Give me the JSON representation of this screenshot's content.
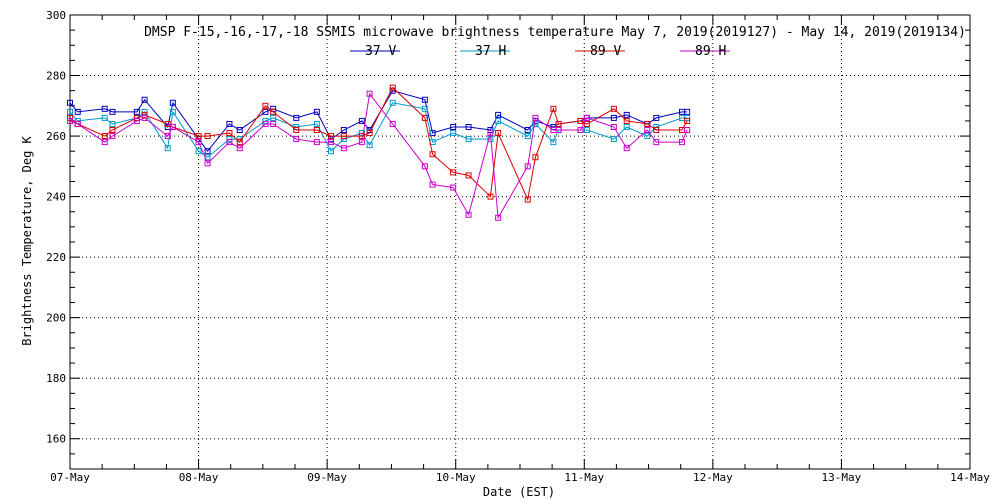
{
  "chart_data": {
    "type": "line",
    "title": "DMSP F-15,-16,-17,-18 SSMIS microwave brightness temperature May  7, 2019(2019127) - May 14, 2019(2019134)",
    "xlabel": "Date (EST)",
    "ylabel": "Brightness Temperature, Deg K",
    "ylim": [
      150,
      300
    ],
    "yticks": [
      160,
      180,
      200,
      220,
      240,
      260,
      280,
      300
    ],
    "xlim_days": [
      0,
      7
    ],
    "x_tick_labels": [
      "07-May",
      "08-May",
      "09-May",
      "10-May",
      "11-May",
      "12-May",
      "13-May",
      "14-May"
    ],
    "grid": true,
    "legend": "top-center",
    "series": [
      {
        "name": "37 V",
        "color": "#0000c0",
        "x": [
          0.0,
          0.06,
          0.27,
          0.33,
          0.52,
          0.58,
          0.76,
          0.8,
          1.0,
          1.07,
          1.24,
          1.32,
          1.52,
          1.58,
          1.76,
          1.92,
          2.03,
          2.13,
          2.27,
          2.33,
          2.51,
          2.76,
          2.82,
          2.98,
          3.1,
          3.27,
          3.33,
          3.56,
          3.62,
          3.76,
          3.8,
          3.97,
          4.02,
          4.23,
          4.33,
          4.49,
          4.56,
          4.76,
          4.8
        ],
        "y": [
          271,
          268,
          269,
          268,
          268,
          272,
          263,
          271,
          259,
          255,
          264,
          262,
          268,
          269,
          266,
          268,
          259,
          262,
          265,
          262,
          275,
          272,
          261,
          263,
          263,
          262,
          267,
          262,
          265,
          263,
          264,
          265,
          266,
          266,
          267,
          264,
          266,
          268,
          268
        ]
      },
      {
        "name": "37 H",
        "color": "#0099cc",
        "x": [
          0.0,
          0.06,
          0.27,
          0.33,
          0.52,
          0.58,
          0.76,
          0.8,
          1.0,
          1.07,
          1.24,
          1.32,
          1.52,
          1.58,
          1.76,
          1.92,
          2.03,
          2.13,
          2.27,
          2.33,
          2.51,
          2.76,
          2.82,
          2.98,
          3.1,
          3.27,
          3.33,
          3.56,
          3.62,
          3.76,
          3.8,
          3.97,
          4.02,
          4.23,
          4.33,
          4.49,
          4.56,
          4.76,
          4.8
        ],
        "y": [
          268,
          265,
          266,
          264,
          266,
          268,
          256,
          268,
          255,
          253,
          259,
          259,
          265,
          266,
          263,
          264,
          255,
          259,
          261,
          257,
          271,
          269,
          258,
          261,
          259,
          259,
          265,
          260,
          264,
          258,
          262,
          262,
          262,
          259,
          263,
          260,
          263,
          266,
          266
        ]
      },
      {
        "name": "89 V",
        "color": "#dd0000",
        "x": [
          0.0,
          0.06,
          0.27,
          0.33,
          0.52,
          0.58,
          0.76,
          0.8,
          1.0,
          1.07,
          1.24,
          1.32,
          1.52,
          1.58,
          1.76,
          1.92,
          2.03,
          2.13,
          2.27,
          2.33,
          2.51,
          2.76,
          2.82,
          2.98,
          3.1,
          3.27,
          3.33,
          3.56,
          3.62,
          3.76,
          3.8,
          3.97,
          4.02,
          4.23,
          4.33,
          4.49,
          4.56,
          4.76,
          4.8
        ],
        "y": [
          266,
          264,
          260,
          262,
          266,
          267,
          264,
          263,
          260,
          260,
          261,
          258,
          270,
          268,
          262,
          262,
          260,
          260,
          260,
          261,
          276,
          266,
          254,
          248,
          247,
          240,
          261,
          239,
          253,
          269,
          264,
          265,
          264,
          269,
          265,
          264,
          262,
          262,
          265
        ]
      },
      {
        "name": "89 H",
        "color": "#cc00cc",
        "x": [
          0.0,
          0.06,
          0.27,
          0.33,
          0.52,
          0.58,
          0.76,
          0.8,
          1.0,
          1.07,
          1.24,
          1.32,
          1.52,
          1.58,
          1.76,
          1.92,
          2.03,
          2.13,
          2.27,
          2.33,
          2.51,
          2.76,
          2.82,
          2.98,
          3.1,
          3.27,
          3.33,
          3.56,
          3.62,
          3.76,
          3.8,
          3.97,
          4.02,
          4.23,
          4.33,
          4.49,
          4.56,
          4.76,
          4.8
        ],
        "y": [
          265,
          264,
          258,
          260,
          265,
          266,
          260,
          263,
          258,
          251,
          258,
          256,
          264,
          264,
          259,
          258,
          258,
          256,
          258,
          274,
          264,
          250,
          244,
          243,
          234,
          261,
          233,
          250,
          266,
          262,
          262,
          262,
          266,
          263,
          256,
          262,
          258,
          258,
          262
        ]
      }
    ]
  }
}
